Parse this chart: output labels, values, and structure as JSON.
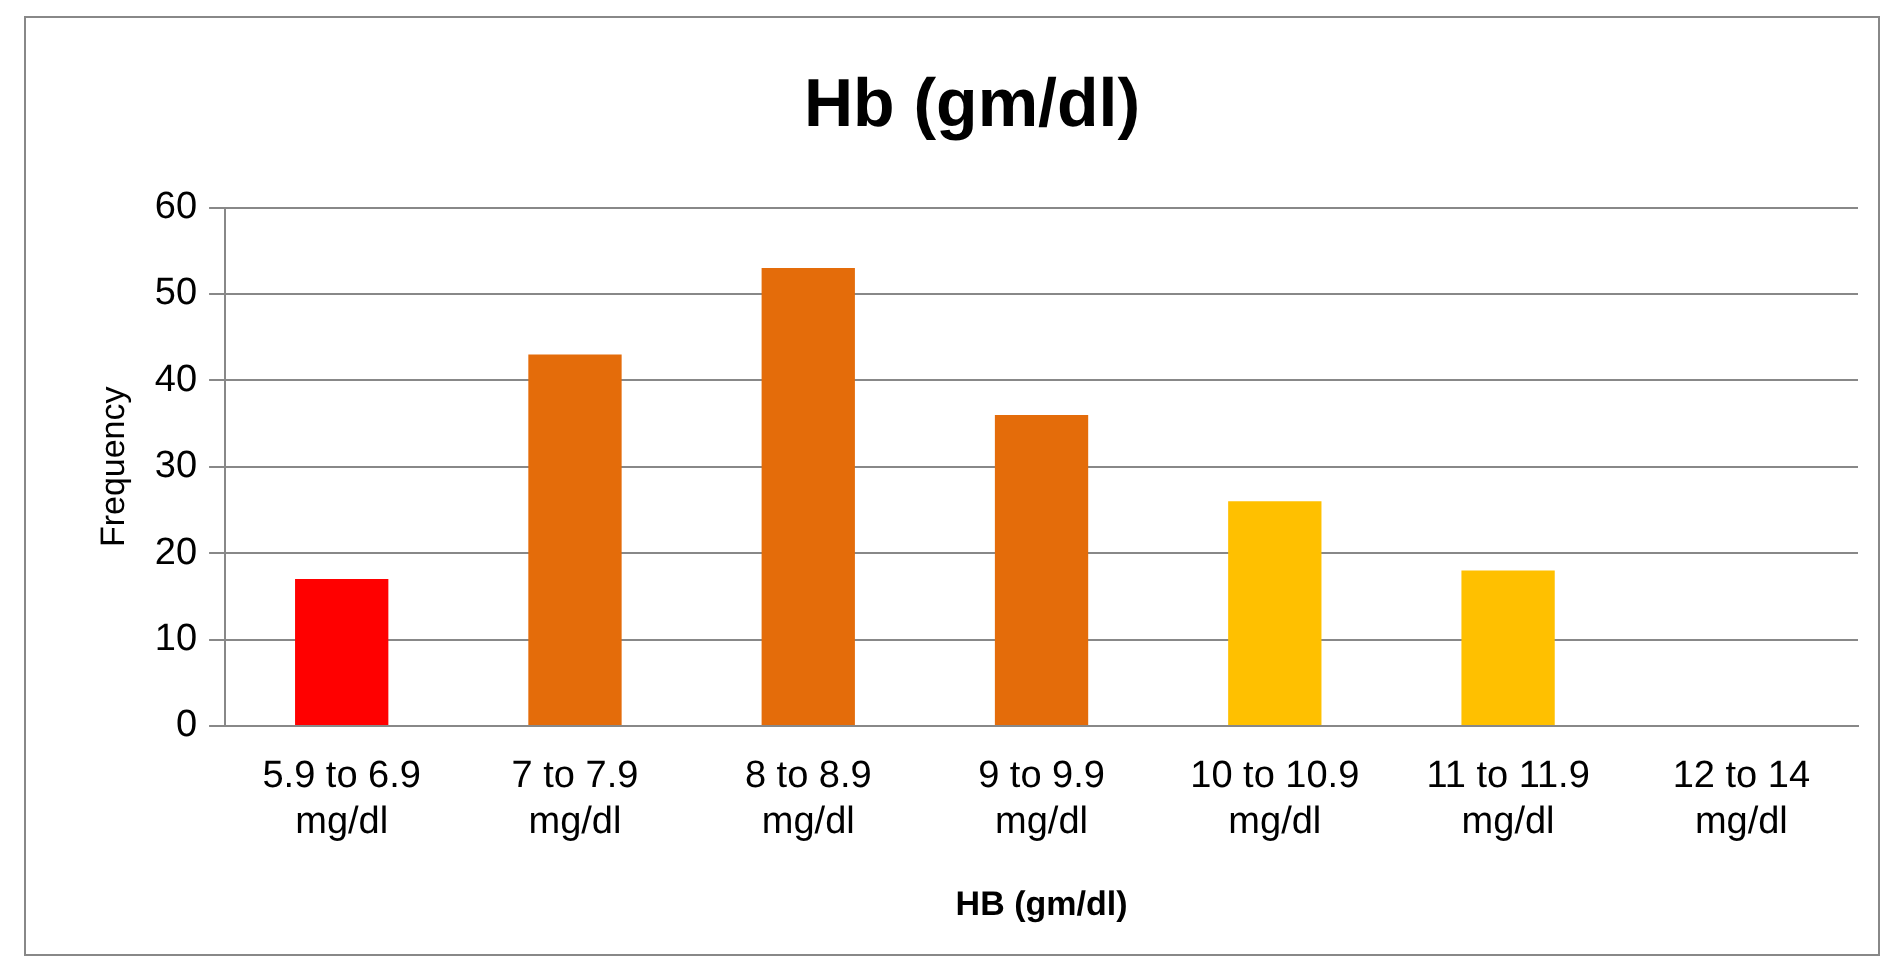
{
  "chart_data": {
    "type": "bar",
    "title": "Hb (gm/dl)",
    "xlabel": "HB (gm/dl)",
    "ylabel": "Frequency",
    "categories": [
      "5.9 to 6.9 mg/dl",
      "7 to 7.9 mg/dl",
      "8 to 8.9 mg/dl",
      "9 to 9.9 mg/dl",
      "10 to 10.9 mg/dl",
      "11 to 11.9 mg/dl",
      "12 to 14 mg/dl"
    ],
    "values": [
      17,
      43,
      53,
      36,
      26,
      18,
      0
    ],
    "colors": [
      "#ff0000",
      "#e46c0a",
      "#e46c0a",
      "#e46c0a",
      "#ffc000",
      "#ffc000",
      "#ffc000"
    ],
    "ylim": [
      0,
      60
    ],
    "yticks": [
      0,
      10,
      20,
      30,
      40,
      50,
      60
    ],
    "grid": "y",
    "legend": false
  }
}
